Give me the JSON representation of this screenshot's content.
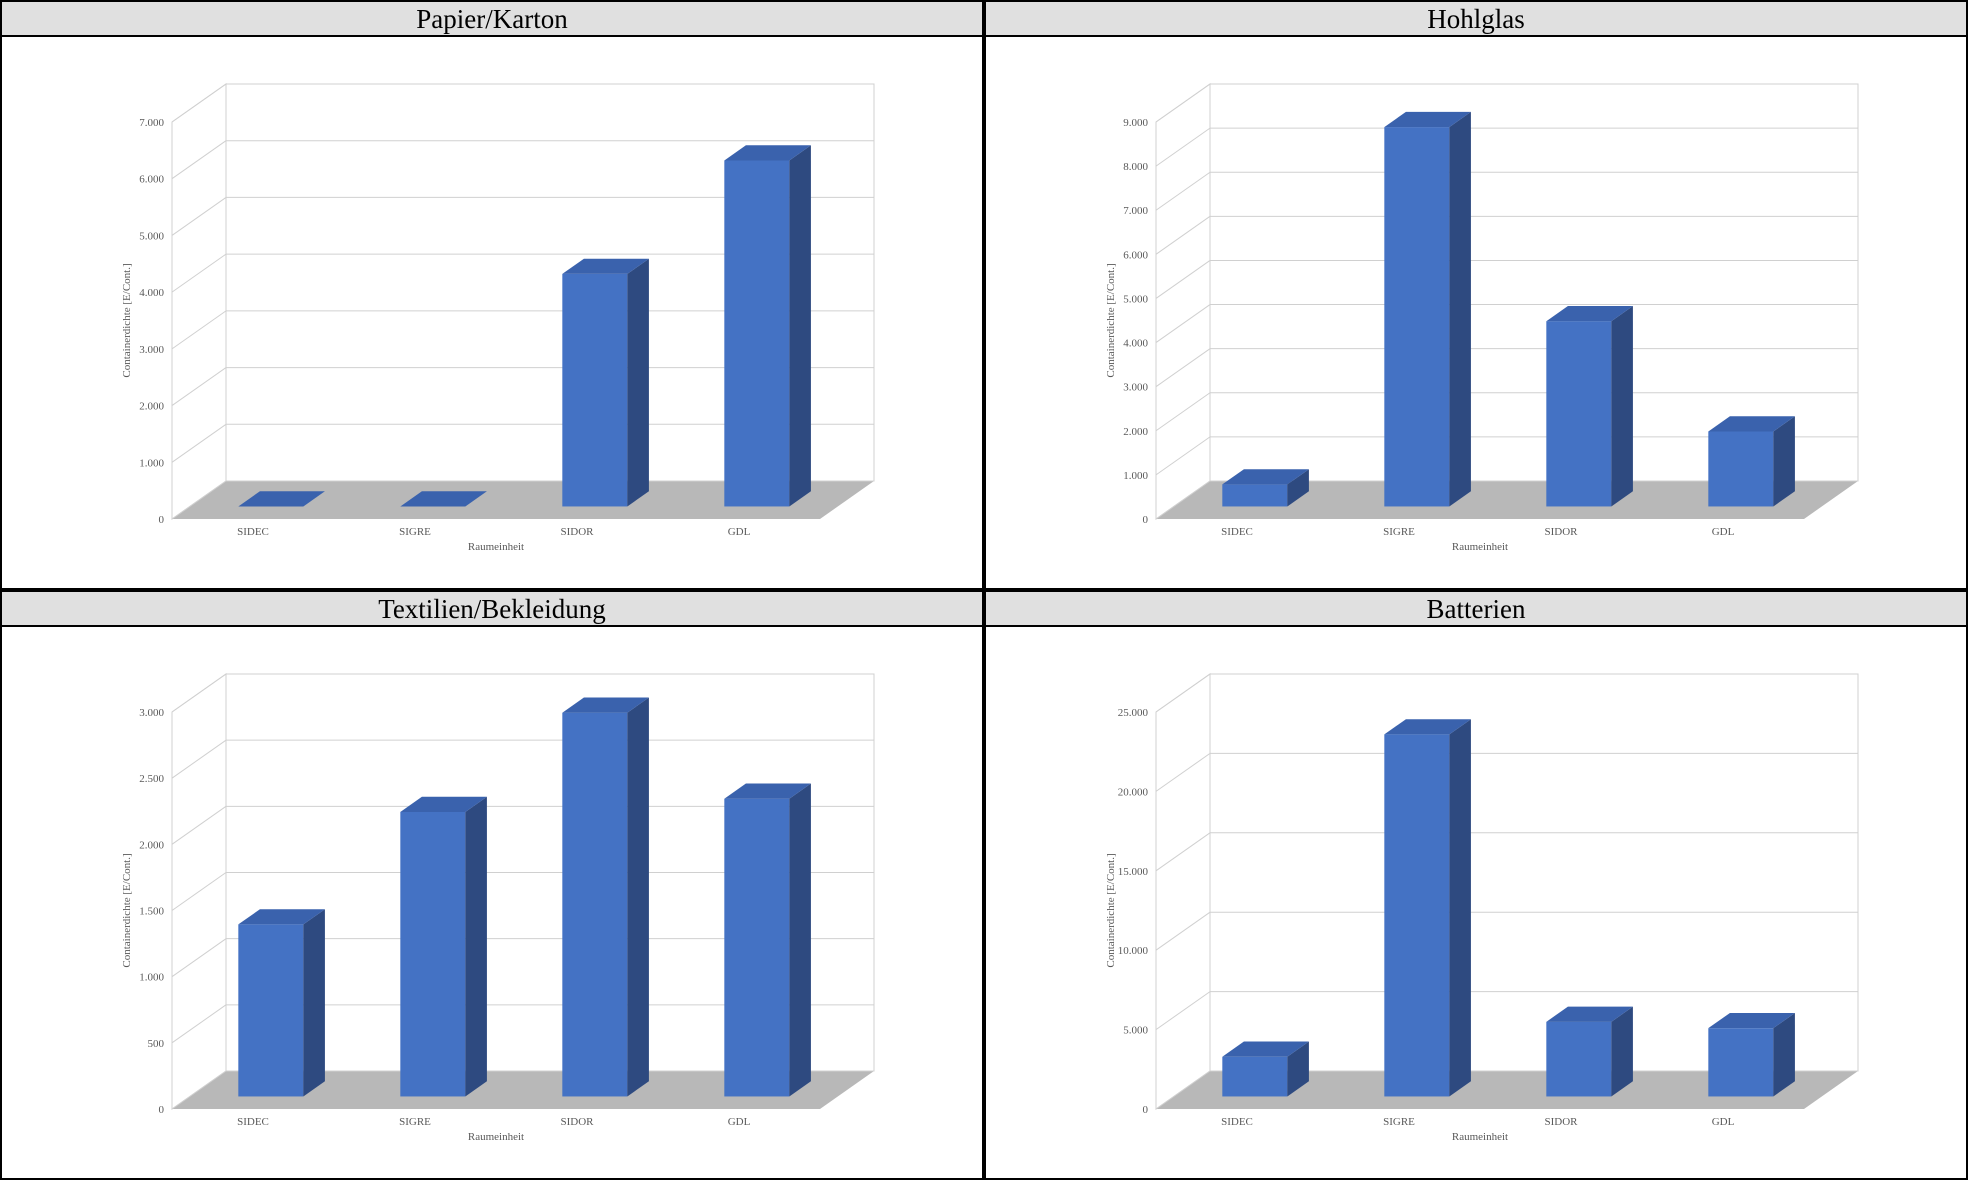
{
  "chart_data": [
    {
      "type": "bar",
      "title": "Papier/Karton",
      "categories": [
        "SIDEC",
        "SIGRE",
        "SIDOR",
        "GDL"
      ],
      "values": [
        0,
        0,
        4100,
        6100
      ],
      "color": "#4472c4",
      "x_label": "Raumeinheit",
      "y_label": "Containerdichte [E/Cont.]",
      "ylim": [
        0,
        7000
      ],
      "yticks": [
        0,
        {
          "value": 1000,
          "label": "1.000"
        },
        {
          "value": 2000,
          "label": "2.000"
        },
        {
          "value": 3000,
          "label": "3.000"
        },
        {
          "value": 4000,
          "label": "4.000"
        },
        {
          "value": 5000,
          "label": "5.000"
        },
        {
          "value": 6000,
          "label": "6.000"
        },
        {
          "value": 7000,
          "label": "7.000"
        }
      ],
      "grid": true
    },
    {
      "type": "bar",
      "title": "Hohlglas",
      "categories": [
        "SIDEC",
        "SIGRE",
        "SIDOR",
        "GDL"
      ],
      "values": [
        500,
        8600,
        4200,
        1700
      ],
      "color": "#4472c4",
      "x_label": "Raumeinheit",
      "y_label": "Containerdichte [E/Cont.]",
      "ylim": [
        0,
        9000
      ],
      "yticks": [
        0,
        {
          "value": 1000,
          "label": "1.000"
        },
        {
          "value": 2000,
          "label": "2.000"
        },
        {
          "value": 3000,
          "label": "3.000"
        },
        {
          "value": 4000,
          "label": "4.000"
        },
        {
          "value": 5000,
          "label": "5.000"
        },
        {
          "value": 6000,
          "label": "6.000"
        },
        {
          "value": 7000,
          "label": "7.000"
        },
        {
          "value": 8000,
          "label": "8.000"
        },
        {
          "value": 9000,
          "label": "9.000"
        }
      ],
      "grid": true
    },
    {
      "type": "bar",
      "title": "Textilien/Bekleidung",
      "categories": [
        "SIDEC",
        "SIGRE",
        "SIDOR",
        "GDL"
      ],
      "values": [
        1300,
        2150,
        2900,
        2250
      ],
      "color": "#4472c4",
      "x_label": "Raumeinheit",
      "y_label": "Containerdichte [E/Cont.]",
      "ylim": [
        0,
        3000
      ],
      "yticks": [
        0,
        500,
        {
          "value": 1000,
          "label": "1.000"
        },
        {
          "value": 1500,
          "label": "1.500"
        },
        {
          "value": 2000,
          "label": "2.000"
        },
        {
          "value": 2500,
          "label": "2.500"
        },
        {
          "value": 3000,
          "label": "3.000"
        }
      ],
      "grid": true
    },
    {
      "type": "bar",
      "title": "Batterien",
      "categories": [
        "SIDEC",
        "SIGRE",
        "SIDOR",
        "GDL"
      ],
      "values": [
        2500,
        22800,
        4700,
        4300
      ],
      "color": "#4472c4",
      "x_label": "Raumeinheit",
      "y_label": "Containerdichte [E/Cont.]",
      "ylim": [
        0,
        25000
      ],
      "yticks": [
        0,
        {
          "value": 5000,
          "label": "5.000"
        },
        {
          "value": 10000,
          "label": "10.000"
        },
        {
          "value": 15000,
          "label": "15.000"
        },
        {
          "value": 20000,
          "label": "20.000"
        },
        {
          "value": 25000,
          "label": "25.000"
        }
      ],
      "grid": true
    }
  ]
}
